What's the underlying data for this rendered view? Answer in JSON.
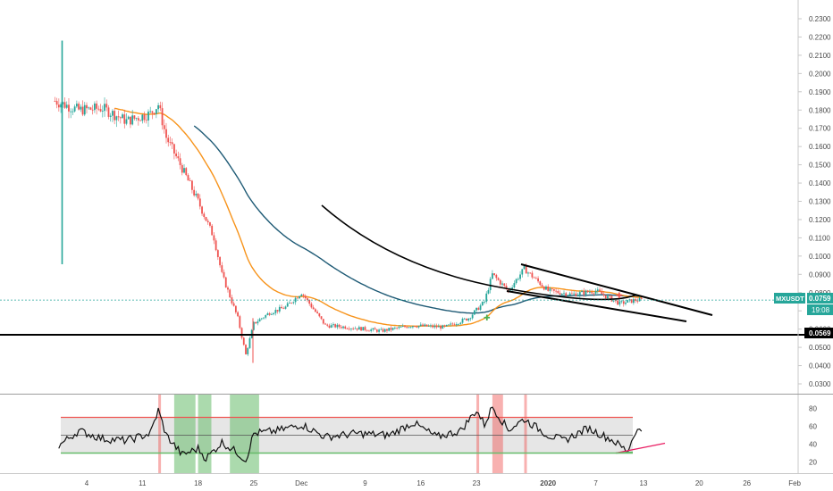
{
  "chart_data": [
    {
      "type": "candlestick",
      "symbol_label": "MXUSDT",
      "last_price_label": "0.0759",
      "countdown_label": "19:08",
      "support_label": "0.0569",
      "last_price": 0.0759,
      "support_level": 0.0569,
      "x_ticks": [
        "4",
        "11",
        "18",
        "25",
        "Dec",
        "9",
        "16",
        "23",
        "2020",
        "7",
        "13",
        "20",
        "26",
        "Feb"
      ],
      "y_ticks": [
        "0.2300",
        "0.2200",
        "0.2100",
        "0.2000",
        "0.1900",
        "0.1800",
        "0.1700",
        "0.1600",
        "0.1500",
        "0.1400",
        "0.1300",
        "0.1200",
        "0.1100",
        "0.1000",
        "0.0900",
        "0.0800",
        "0.0700",
        "0.0600",
        "0.0500",
        "0.0400",
        "0.0300"
      ],
      "ylim": [
        0.024,
        0.234
      ],
      "close_path": [
        {
          "x": "Oct 31",
          "y": 0.185
        },
        {
          "x": "Nov 3",
          "y": 0.18
        },
        {
          "x": "Nov 6",
          "y": 0.181
        },
        {
          "x": "Nov 9",
          "y": 0.174
        },
        {
          "x": "Nov 12",
          "y": 0.178
        },
        {
          "x": "Nov 13",
          "y": 0.183
        },
        {
          "x": "Nov 14",
          "y": 0.165
        },
        {
          "x": "Nov 16",
          "y": 0.148
        },
        {
          "x": "Nov 18",
          "y": 0.13
        },
        {
          "x": "Nov 20",
          "y": 0.11
        },
        {
          "x": "Nov 21",
          "y": 0.09
        },
        {
          "x": "Nov 23",
          "y": 0.066
        },
        {
          "x": "Nov 24",
          "y": 0.046
        },
        {
          "x": "Nov 25",
          "y": 0.063
        },
        {
          "x": "Nov 27",
          "y": 0.069
        },
        {
          "x": "Nov 29",
          "y": 0.072
        },
        {
          "x": "Dec 1",
          "y": 0.08
        },
        {
          "x": "Dec 4",
          "y": 0.062
        },
        {
          "x": "Dec 7",
          "y": 0.061
        },
        {
          "x": "Dec 11",
          "y": 0.059
        },
        {
          "x": "Dec 15",
          "y": 0.062
        },
        {
          "x": "Dec 19",
          "y": 0.061
        },
        {
          "x": "Dec 22",
          "y": 0.066
        },
        {
          "x": "Dec 24",
          "y": 0.075
        },
        {
          "x": "Dec 25",
          "y": 0.09
        },
        {
          "x": "Dec 27",
          "y": 0.081
        },
        {
          "x": "Dec 29",
          "y": 0.093
        },
        {
          "x": "Jan 1",
          "y": 0.081
        },
        {
          "x": "Jan 4",
          "y": 0.079
        },
        {
          "x": "Jan 7",
          "y": 0.081
        },
        {
          "x": "Jan 10",
          "y": 0.074
        },
        {
          "x": "Jan 12",
          "y": 0.0759
        }
      ],
      "series": [
        {
          "name": "",
          "color": "#f7931a",
          "role": "fast moving average"
        },
        {
          "name": "",
          "color": "#1e5a75",
          "role": "slow moving average"
        },
        {
          "name": "",
          "color": "#000000",
          "role": "drawn curve"
        }
      ],
      "colors": {
        "up": "#26a69a",
        "down": "#ef5350",
        "price_line": "#26a69a",
        "support": "#000000"
      },
      "grid": false
    },
    {
      "type": "line",
      "y_ticks": [
        "80",
        "60",
        "40",
        "20"
      ],
      "ylim": [
        12,
        90
      ],
      "overbought": 70,
      "oversold": 30,
      "midline": 50,
      "rsi_path": [
        {
          "x": "Oct 31",
          "y": 35
        },
        {
          "x": "Nov 3",
          "y": 55
        },
        {
          "x": "Nov 6",
          "y": 46
        },
        {
          "x": "Nov 9",
          "y": 44
        },
        {
          "x": "Nov 12",
          "y": 52
        },
        {
          "x": "Nov 13",
          "y": 78
        },
        {
          "x": "Nov 14",
          "y": 50
        },
        {
          "x": "Nov 16",
          "y": 28
        },
        {
          "x": "Nov 18",
          "y": 35
        },
        {
          "x": "Nov 19",
          "y": 24
        },
        {
          "x": "Nov 21",
          "y": 42
        },
        {
          "x": "Nov 23",
          "y": 30
        },
        {
          "x": "Nov 24",
          "y": 22
        },
        {
          "x": "Nov 25",
          "y": 52
        },
        {
          "x": "Nov 28",
          "y": 55
        },
        {
          "x": "Dec 1",
          "y": 62
        },
        {
          "x": "Dec 4",
          "y": 48
        },
        {
          "x": "Dec 8",
          "y": 52
        },
        {
          "x": "Dec 12",
          "y": 50
        },
        {
          "x": "Dec 15",
          "y": 64
        },
        {
          "x": "Dec 18",
          "y": 48
        },
        {
          "x": "Dec 21",
          "y": 55
        },
        {
          "x": "Dec 23",
          "y": 78
        },
        {
          "x": "Dec 24",
          "y": 62
        },
        {
          "x": "Dec 25",
          "y": 82
        },
        {
          "x": "Dec 27",
          "y": 56
        },
        {
          "x": "Dec 29",
          "y": 68
        },
        {
          "x": "Jan 1",
          "y": 50
        },
        {
          "x": "Jan 3",
          "y": 44
        },
        {
          "x": "Jan 6",
          "y": 58
        },
        {
          "x": "Jan 9",
          "y": 45
        },
        {
          "x": "Jan 11",
          "y": 32
        },
        {
          "x": "Jan 12",
          "y": 55
        }
      ],
      "oversold_zones": [
        [
          "Nov 15",
          "Nov 17"
        ],
        [
          "Nov 18",
          "Nov 19"
        ],
        [
          "Nov 22",
          "Nov 25"
        ]
      ],
      "overbought_zones": [
        [
          "Dec 23",
          "Dec 23"
        ],
        [
          "Dec 25",
          "Dec 26"
        ],
        [
          "Dec 29",
          "Dec 29"
        ],
        [
          "Nov 13",
          "Nov 13"
        ]
      ],
      "colors": {
        "rsi": "#000000",
        "overbought": "#ef5350",
        "oversold": "#66bb6a",
        "band": "#e6e6e6",
        "divergence": "#e91e63"
      },
      "grid": false
    }
  ]
}
